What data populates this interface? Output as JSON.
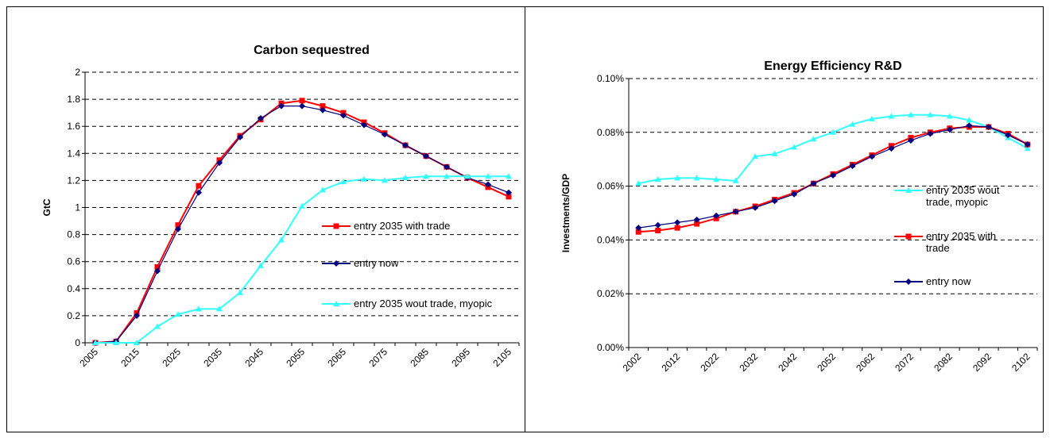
{
  "chart_data": [
    {
      "type": "line",
      "title": "Carbon sequestred",
      "y_label": "GtC",
      "categories": [
        "2005",
        null,
        "2015",
        null,
        "2025",
        null,
        "2035",
        null,
        "2045",
        null,
        "2055",
        null,
        "2065",
        null,
        "2075",
        null,
        "2085",
        null,
        "2095",
        null,
        "2105"
      ],
      "ylim": [
        0,
        2
      ],
      "yticks": [
        0,
        0.2,
        0.4,
        0.6,
        0.8,
        1,
        1.2,
        1.4,
        1.6,
        1.8,
        2
      ],
      "grid": true,
      "series": [
        {
          "name": "entry 2035 with trade",
          "color": "#ff0000",
          "marker": "square",
          "values": [
            0,
            0.01,
            0.22,
            0.56,
            0.87,
            1.16,
            1.35,
            1.53,
            1.65,
            1.77,
            1.79,
            1.75,
            1.7,
            1.63,
            1.55,
            1.46,
            1.38,
            1.3,
            1.22,
            1.15,
            1.08
          ]
        },
        {
          "name": "entry now",
          "color": "#000080",
          "marker": "diamond",
          "values": [
            0,
            0.01,
            0.2,
            0.53,
            0.84,
            1.11,
            1.33,
            1.52,
            1.66,
            1.75,
            1.75,
            1.72,
            1.68,
            1.61,
            1.54,
            1.46,
            1.38,
            1.3,
            1.22,
            1.17,
            1.11
          ]
        },
        {
          "name": "entry 2035 wout trade, myopic",
          "color": "#33ffff",
          "marker": "triangle",
          "values": [
            0,
            0,
            0,
            0.12,
            0.21,
            0.25,
            0.25,
            0.37,
            0.57,
            0.76,
            1.01,
            1.13,
            1.19,
            1.21,
            1.2,
            1.22,
            1.23,
            1.23,
            1.23,
            1.23,
            1.23
          ]
        }
      ]
    },
    {
      "type": "line",
      "title": "Energy Efficiency R&D",
      "y_label": "Investments/GDP",
      "categories": [
        "2002",
        null,
        "2012",
        null,
        "2022",
        null,
        "2032",
        null,
        "2042",
        null,
        "2052",
        null,
        "2062",
        null,
        "2072",
        null,
        "2082",
        null,
        "2092",
        null,
        "2102"
      ],
      "ylim": [
        0,
        0.1
      ],
      "yticks": [
        {
          "value": 0,
          "label": "0.00%"
        },
        {
          "value": 0.02,
          "label": "0.02%"
        },
        {
          "value": 0.04,
          "label": "0.04%"
        },
        {
          "value": 0.06,
          "label": "0.06%"
        },
        {
          "value": 0.08,
          "label": "0.08%"
        },
        {
          "value": 0.1,
          "label": "0.10%"
        }
      ],
      "grid": true,
      "series": [
        {
          "name": "entry 2035 wout trade, myopic",
          "color": "#33ffff",
          "marker": "triangle",
          "values": [
            0.061,
            0.0625,
            0.063,
            0.063,
            0.0625,
            0.062,
            0.071,
            0.072,
            0.0745,
            0.0775,
            0.08,
            0.083,
            0.085,
            0.086,
            0.0865,
            0.0865,
            0.086,
            0.0845,
            0.082,
            0.078,
            0.074
          ]
        },
        {
          "name": "entry 2035 with trade",
          "color": "#ff0000",
          "marker": "square",
          "values": [
            0.043,
            0.0435,
            0.0445,
            0.046,
            0.048,
            0.0505,
            0.0525,
            0.055,
            0.0575,
            0.061,
            0.0645,
            0.068,
            0.0715,
            0.075,
            0.078,
            0.08,
            0.0815,
            0.082,
            0.082,
            0.0795,
            0.0755
          ]
        },
        {
          "name": "entry now",
          "color": "#000080",
          "marker": "diamond",
          "values": [
            0.0445,
            0.0455,
            0.0465,
            0.0475,
            0.049,
            0.0505,
            0.052,
            0.0545,
            0.057,
            0.061,
            0.064,
            0.0675,
            0.071,
            0.074,
            0.077,
            0.0795,
            0.081,
            0.0825,
            0.082,
            0.079,
            0.0755
          ]
        }
      ]
    }
  ]
}
